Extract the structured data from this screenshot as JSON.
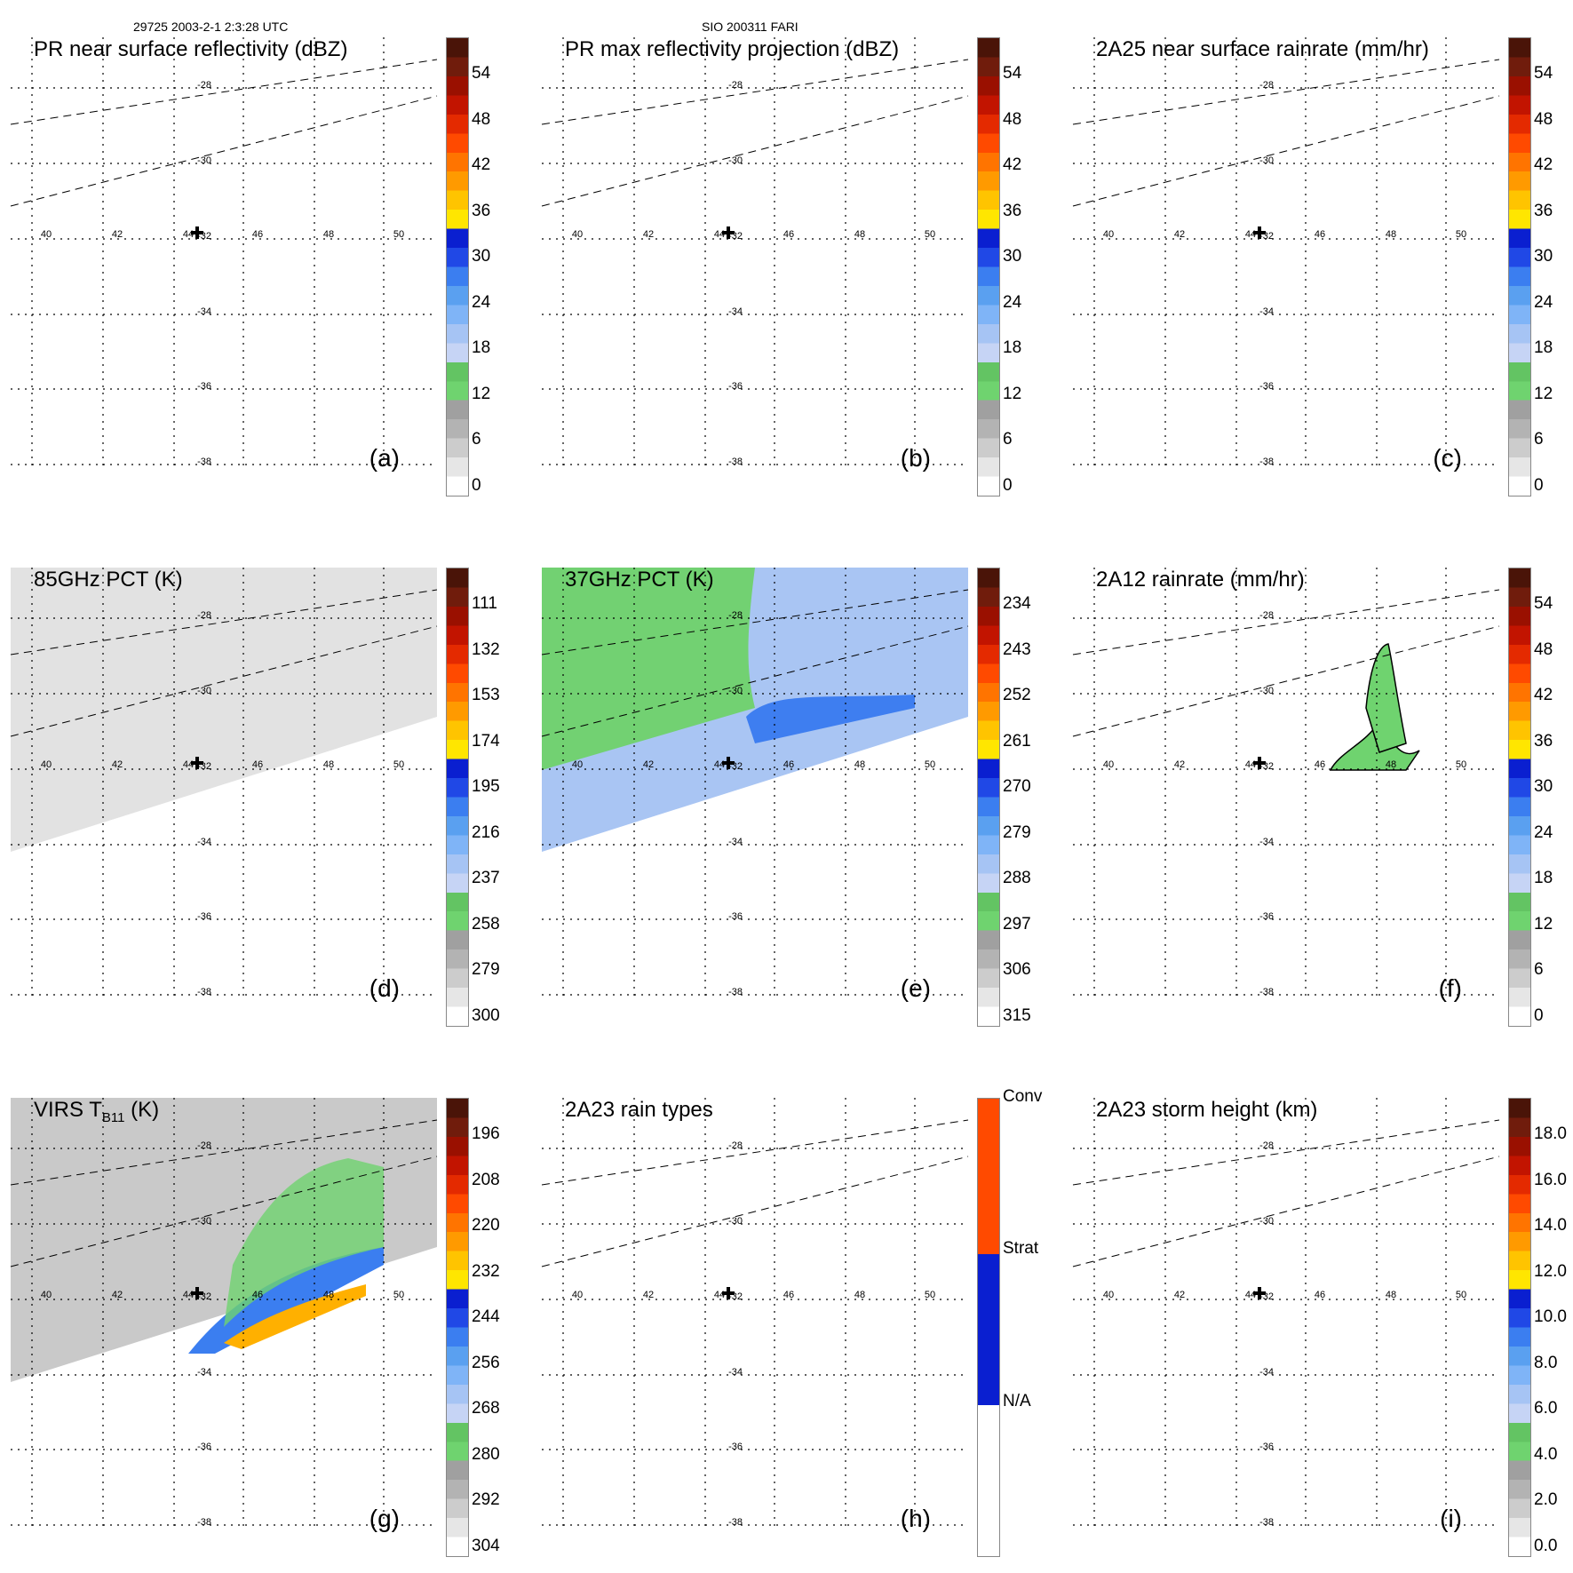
{
  "header": {
    "orbit_time": "29725 2003-2-1 2:3:28 UTC",
    "site": "SIO 200311 FARI"
  },
  "map": {
    "lon_ticks": [
      "40",
      "42",
      "44",
      "46",
      "48",
      "50"
    ],
    "lat_ticks": [
      "-28",
      "-30",
      "-32",
      "-34",
      "-36",
      "-38"
    ],
    "center_marker": "plus-icon"
  },
  "panels": [
    {
      "id": "a",
      "title": "PR near surface reflectivity (dBZ)",
      "label": "(a)",
      "colorbar": [
        "54",
        "48",
        "42",
        "36",
        "30",
        "24",
        "18",
        "12",
        "6",
        "0"
      ]
    },
    {
      "id": "b",
      "title": "PR max reflectivity projection (dBZ)",
      "label": "(b)",
      "colorbar": [
        "54",
        "48",
        "42",
        "36",
        "30",
        "24",
        "18",
        "12",
        "6",
        "0"
      ]
    },
    {
      "id": "c",
      "title": "2A25 near surface rainrate (mm/hr)",
      "label": "(c)",
      "colorbar": [
        "54",
        "48",
        "42",
        "36",
        "30",
        "24",
        "18",
        "12",
        "6",
        "0"
      ]
    },
    {
      "id": "d",
      "title": "85GHz PCT (K)",
      "label": "(d)",
      "colorbar": [
        "111",
        "132",
        "153",
        "174",
        "195",
        "216",
        "237",
        "258",
        "279",
        "300"
      ]
    },
    {
      "id": "e",
      "title": "37GHz PCT (K)",
      "label": "(e)",
      "colorbar": [
        "234",
        "243",
        "252",
        "261",
        "270",
        "279",
        "288",
        "297",
        "306",
        "315"
      ]
    },
    {
      "id": "f",
      "title": "2A12 rainrate (mm/hr)",
      "label": "(f)",
      "colorbar": [
        "54",
        "48",
        "42",
        "36",
        "30",
        "24",
        "18",
        "12",
        "6",
        "0"
      ]
    },
    {
      "id": "g",
      "title": "VIRS T",
      "title_sub": "B11",
      "title_suffix": " (K)",
      "label": "(g)",
      "colorbar": [
        "196",
        "208",
        "220",
        "232",
        "244",
        "256",
        "268",
        "280",
        "292",
        "304"
      ]
    },
    {
      "id": "h",
      "title": "2A23 rain types",
      "label": "(h)",
      "colorbar": [
        "Conv",
        "Strat",
        "N/A"
      ]
    },
    {
      "id": "i",
      "title": "2A23 storm height (km)",
      "label": "(i)",
      "colorbar": [
        "18.0",
        "16.0",
        "14.0",
        "12.0",
        "10.0",
        "8.0",
        "6.0",
        "4.0",
        "2.0",
        "0.0"
      ]
    }
  ],
  "colors": {
    "scale": [
      "#ffffff",
      "#e6e6e6",
      "#cccccc",
      "#b3b3b3",
      "#a0a0a0",
      "#6fd36f",
      "#63c463",
      "#c6d4f5",
      "#a6c4f4",
      "#7fb4f7",
      "#5aa0f0",
      "#3b7ef0",
      "#2048e6",
      "#0a1fd0",
      "#ffe600",
      "#ffc400",
      "#ff9a00",
      "#ff7400",
      "#ff4a00",
      "#e42a00",
      "#c21400",
      "#9a1000",
      "#701c0c",
      "#4a1408"
    ],
    "types": [
      "#ffffff",
      "#0a1fd0",
      "#ff4a00"
    ]
  }
}
